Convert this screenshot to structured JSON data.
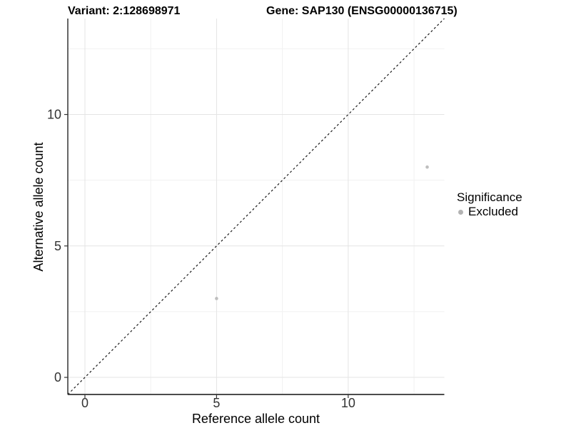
{
  "header": {
    "title_left": "Variant: 2:128698971",
    "title_right": "Gene: SAP130 (ENSG00000136715)"
  },
  "chart_data": {
    "type": "scatter",
    "title": "Variant: 2:128698971  /  Gene: SAP130 (ENSG00000136715)",
    "xlabel": "Reference allele count",
    "ylabel": "Alternative allele count",
    "xlim": [
      -0.65,
      13.65
    ],
    "ylim": [
      -0.65,
      13.65
    ],
    "x_major_breaks": [
      0,
      5,
      10
    ],
    "x_minor_breaks": [
      2.5,
      7.5,
      12.5
    ],
    "y_major_breaks": [
      0,
      5,
      10
    ],
    "y_minor_breaks": [
      2.5,
      7.5,
      12.5
    ],
    "x_tick_labels": [
      "0",
      "5",
      "10"
    ],
    "y_tick_labels": [
      "0",
      "5",
      "10"
    ],
    "grid": true,
    "identity_line": {
      "style": "dashed",
      "slope": 1,
      "intercept": 0
    },
    "series": [
      {
        "name": "Excluded",
        "color": "#bebebe",
        "points": [
          {
            "x": 5,
            "y": 3
          },
          {
            "x": 13,
            "y": 8
          }
        ]
      }
    ],
    "legend": {
      "position": "right",
      "title": "Significance",
      "items": [
        {
          "label": "Excluded",
          "color": "#b3b3b3"
        }
      ]
    },
    "style": {
      "major_grid_color": "#e4e4e4",
      "minor_grid_color": "#f1f1f1",
      "axis_line_color": "#333333",
      "tick_label_color": "#333333",
      "identity_line_color": "#1a1a1a"
    }
  }
}
